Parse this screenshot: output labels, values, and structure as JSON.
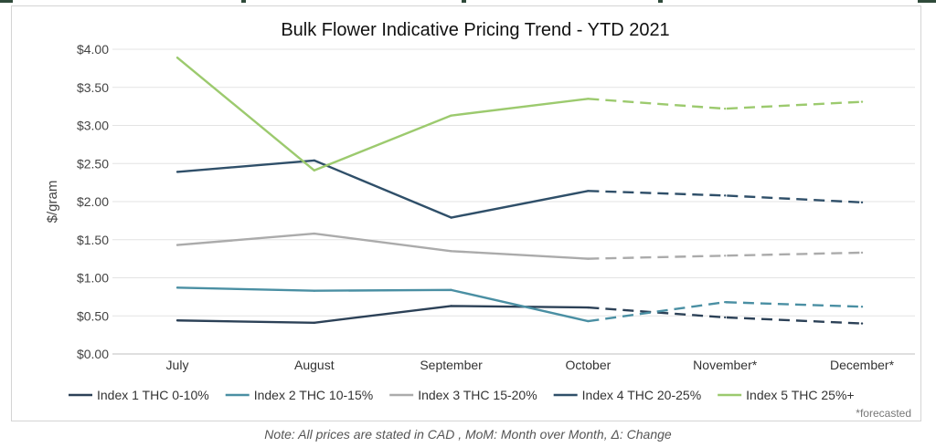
{
  "chart_data": {
    "type": "line",
    "title": "Bulk Flower Indicative Pricing Trend - YTD 2021",
    "xlabel": "",
    "ylabel": "$/gram",
    "categories": [
      "July",
      "August",
      "September",
      "October",
      "November*",
      "December*"
    ],
    "ylim": [
      0,
      4.0
    ],
    "yticks": [
      "$0.00",
      "$0.50",
      "$1.00",
      "$1.50",
      "$2.00",
      "$2.50",
      "$3.00",
      "$3.50",
      "$4.00"
    ],
    "grid": true,
    "legend_position": "bottom",
    "forecast_from_index": 3,
    "series": [
      {
        "name": "Index 1 THC 0-10%",
        "color": "#2c4157",
        "values": [
          0.44,
          0.41,
          0.63,
          0.61,
          0.48,
          0.4
        ]
      },
      {
        "name": "Index 2 THC 10-15%",
        "color": "#4a8fa3",
        "values": [
          0.87,
          0.83,
          0.84,
          0.43,
          0.68,
          0.62
        ]
      },
      {
        "name": "Index 3 THC 15-20%",
        "color": "#ababab",
        "values": [
          1.43,
          1.58,
          1.35,
          1.25,
          1.29,
          1.33
        ]
      },
      {
        "name": "Index 4 THC 20-25%",
        "color": "#2f4f69",
        "values": [
          2.39,
          2.54,
          1.79,
          2.14,
          2.08,
          1.99
        ]
      },
      {
        "name": "Index 5 THC 25%+",
        "color": "#9cca6e",
        "values": [
          3.89,
          2.41,
          3.13,
          3.35,
          3.22,
          3.31
        ]
      }
    ],
    "footnote": "*forecasted"
  },
  "note": "Note: All prices are stated in CAD , MoM: Month over Month, Δ: Change"
}
